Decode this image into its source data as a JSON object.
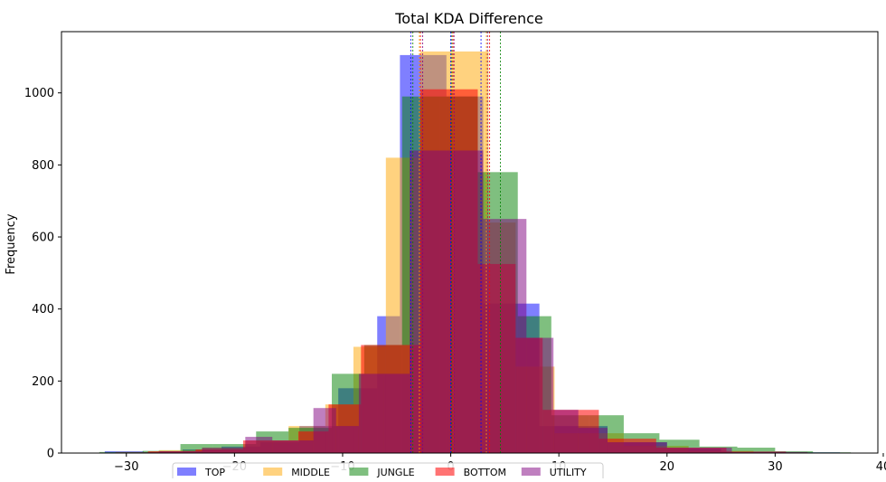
{
  "chart_data": {
    "type": "bar",
    "title": "Total KDA Difference",
    "xlabel": "",
    "ylabel": "Frequency",
    "xlim": [
      -36,
      39.5
    ],
    "ylim": [
      0,
      1170
    ],
    "xticks": [
      -30,
      -20,
      -10,
      0,
      10,
      20,
      30,
      40
    ],
    "yticks": [
      0,
      200,
      400,
      600,
      800,
      1000
    ],
    "xtick_labels": [
      "−30",
      "−20",
      "−10",
      "0",
      "10",
      "20",
      "30",
      "40"
    ],
    "ytick_labels": [
      "0",
      "200",
      "400",
      "600",
      "800",
      "1000"
    ],
    "grid": false,
    "legend_placement": "bottom-center",
    "series": [
      {
        "name": "TOP",
        "color": "#0000ff",
        "alpha": 0.5,
        "bins": [
          [
            -32,
            -28.4,
            5
          ],
          [
            -28.4,
            -24.8,
            3
          ],
          [
            -24.8,
            -21.2,
            10
          ],
          [
            -21.2,
            -17.6,
            18
          ],
          [
            -17.6,
            -14,
            30
          ],
          [
            -14,
            -10.4,
            75
          ],
          [
            -10.4,
            -6.8,
            180
          ],
          [
            -6.8,
            -4.7,
            380
          ],
          [
            -4.7,
            -0.4,
            1105
          ],
          [
            -0.4,
            3,
            990
          ],
          [
            3,
            8.2,
            415
          ],
          [
            8.2,
            14.5,
            75
          ],
          [
            14.5,
            20,
            30
          ],
          [
            20,
            25,
            12
          ],
          [
            25,
            31,
            4
          ],
          [
            31,
            36,
            2
          ]
        ]
      },
      {
        "name": "MIDDLE",
        "color": "#ffa500",
        "alpha": 0.5,
        "bins": [
          [
            -31,
            -27,
            3
          ],
          [
            -27,
            -23,
            8
          ],
          [
            -23,
            -19,
            15
          ],
          [
            -19,
            -15,
            35
          ],
          [
            -15,
            -11.6,
            75
          ],
          [
            -11.6,
            -9,
            135
          ],
          [
            -9,
            -6,
            295
          ],
          [
            -6,
            -2.8,
            820
          ],
          [
            -2.8,
            3.5,
            1115
          ],
          [
            3.5,
            6,
            640
          ],
          [
            6,
            9.6,
            240
          ],
          [
            9.6,
            16,
            55
          ],
          [
            16,
            22,
            20
          ],
          [
            22,
            28,
            6
          ],
          [
            28,
            33,
            2
          ]
        ]
      },
      {
        "name": "JUNGLE",
        "color": "#008000",
        "alpha": 0.5,
        "bins": [
          [
            -32.5,
            -28.5,
            3
          ],
          [
            -28.5,
            -25,
            6
          ],
          [
            -25,
            -22,
            25
          ],
          [
            -22,
            -18,
            25
          ],
          [
            -18,
            -15,
            60
          ],
          [
            -15,
            -11,
            70
          ],
          [
            -11,
            -8,
            220
          ],
          [
            -8,
            -4.5,
            300
          ],
          [
            -4.5,
            -1,
            990
          ],
          [
            -1,
            2.5,
            990
          ],
          [
            2.5,
            6.2,
            780
          ],
          [
            6.2,
            9.3,
            380
          ],
          [
            9.3,
            12.8,
            105
          ],
          [
            12.8,
            16,
            105
          ],
          [
            16,
            19.3,
            55
          ],
          [
            19.3,
            23,
            37
          ],
          [
            23,
            26.5,
            18
          ],
          [
            26.5,
            30,
            15
          ],
          [
            30,
            33.5,
            5
          ],
          [
            33.5,
            37,
            2
          ]
        ]
      },
      {
        "name": "BOTTOM",
        "color": "#ff0000",
        "alpha": 0.55,
        "bins": [
          [
            -28,
            -23.6,
            5
          ],
          [
            -23.6,
            -19.2,
            10
          ],
          [
            -19.2,
            -14.1,
            35
          ],
          [
            -14.1,
            -11.3,
            60
          ],
          [
            -11.3,
            -8.3,
            135
          ],
          [
            -8.3,
            -2.8,
            300
          ],
          [
            -2.8,
            2.5,
            1010
          ],
          [
            2.5,
            6,
            525
          ],
          [
            6,
            8.5,
            320
          ],
          [
            8.5,
            13.7,
            120
          ],
          [
            13.7,
            19,
            40
          ],
          [
            19,
            25.5,
            15
          ],
          [
            25.5,
            31,
            4
          ]
        ]
      },
      {
        "name": "UTILITY",
        "color": "#800080",
        "alpha": 0.5,
        "bins": [
          [
            -31,
            -27,
            2
          ],
          [
            -27,
            -23,
            5
          ],
          [
            -23,
            -19,
            15
          ],
          [
            -19,
            -16.5,
            45
          ],
          [
            -16.5,
            -12.7,
            35
          ],
          [
            -12.7,
            -10.6,
            125
          ],
          [
            -10.6,
            -8.5,
            75
          ],
          [
            -8.5,
            -6.2,
            220
          ],
          [
            -6.2,
            -3.8,
            220
          ],
          [
            -3.8,
            0.3,
            840
          ],
          [
            0.3,
            3,
            840
          ],
          [
            3,
            7,
            650
          ],
          [
            7,
            9.5,
            320
          ],
          [
            9.5,
            11.8,
            120
          ],
          [
            11.8,
            14.5,
            70
          ],
          [
            14.5,
            20,
            30
          ],
          [
            20,
            26,
            15
          ],
          [
            26,
            33,
            3
          ]
        ]
      }
    ],
    "reference_lines": [
      {
        "series": "TOP",
        "color": "#0000ff",
        "style": "dashed",
        "x": [
          -3.7,
          0,
          2.8
        ]
      },
      {
        "series": "MIDDLE",
        "color": "#ffa500",
        "style": "dashed",
        "x": [
          -2.9,
          0.2,
          3.3
        ]
      },
      {
        "series": "JUNGLE",
        "color": "#008000",
        "style": "dashed",
        "x": [
          -3.5,
          0.1,
          4.6
        ]
      },
      {
        "series": "BOTTOM",
        "color": "#ff0000",
        "style": "dashed",
        "x": [
          -2.8,
          0.2,
          3.6
        ]
      },
      {
        "series": "UTILITY",
        "color": "#800080",
        "style": "dashed",
        "x": [
          -2.6,
          0.3,
          3.4
        ]
      }
    ]
  }
}
